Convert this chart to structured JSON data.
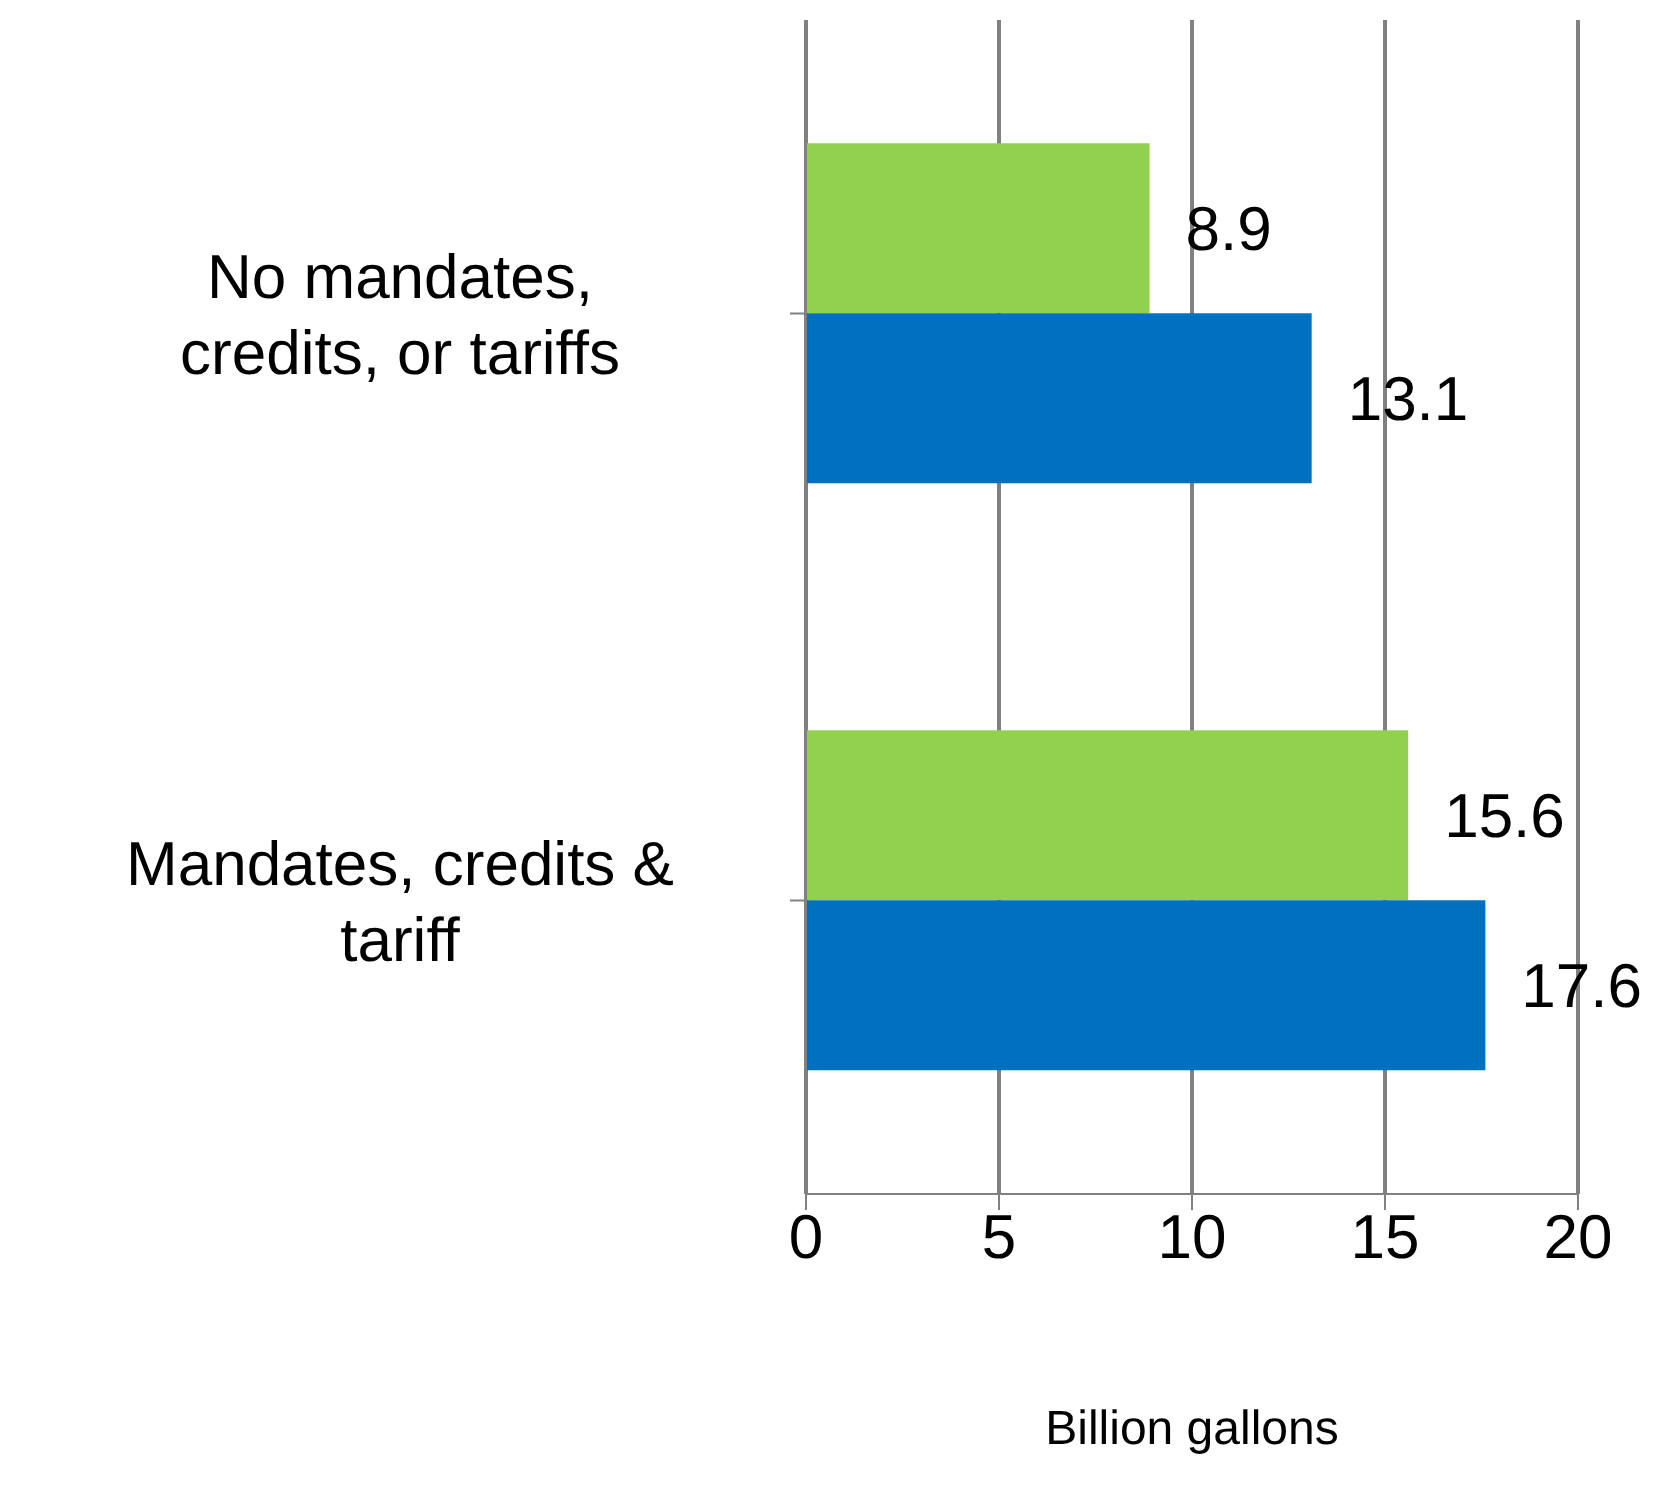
{
  "chart_data": {
    "type": "bar",
    "orientation": "horizontal",
    "categories": [
      "No mandates, credits, or tariffs",
      "Mandates, credits & tariff"
    ],
    "series": [
      {
        "color": "#92d050",
        "values": [
          8.9,
          15.6
        ]
      },
      {
        "color": "#0070c0",
        "values": [
          13.1,
          17.6
        ]
      }
    ],
    "xlabel": "Billion gallons",
    "xlim": [
      0,
      20
    ],
    "xticks": [
      0,
      5,
      10,
      15,
      20
    ],
    "grid": "x",
    "legend": false,
    "data_labels": true
  }
}
